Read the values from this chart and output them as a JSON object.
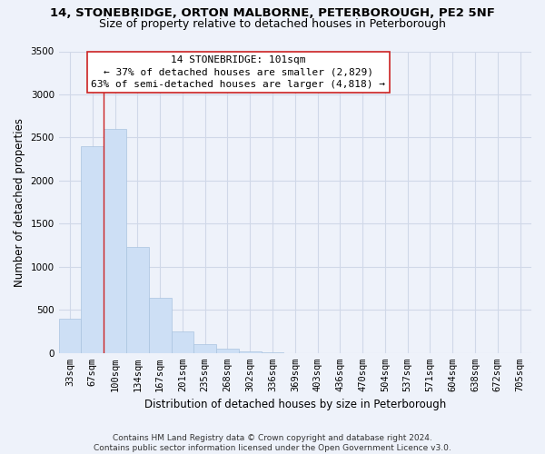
{
  "title": "14, STONEBRIDGE, ORTON MALBORNE, PETERBOROUGH, PE2 5NF",
  "subtitle": "Size of property relative to detached houses in Peterborough",
  "xlabel": "Distribution of detached houses by size in Peterborough",
  "ylabel": "Number of detached properties",
  "bar_color": "#cddff5",
  "bar_edge_color": "#aac4e0",
  "annotation_line_color": "#cc2222",
  "categories": [
    "33sqm",
    "67sqm",
    "100sqm",
    "134sqm",
    "167sqm",
    "201sqm",
    "235sqm",
    "268sqm",
    "302sqm",
    "336sqm",
    "369sqm",
    "403sqm",
    "436sqm",
    "470sqm",
    "504sqm",
    "537sqm",
    "571sqm",
    "604sqm",
    "638sqm",
    "672sqm",
    "705sqm"
  ],
  "values": [
    400,
    2400,
    2600,
    1230,
    640,
    255,
    105,
    55,
    18,
    5,
    2,
    0,
    0,
    0,
    0,
    0,
    0,
    0,
    0,
    0,
    0
  ],
  "annotation_bar_index": 2,
  "annotation_text_line1": "14 STONEBRIDGE: 101sqm",
  "annotation_text_line2": "← 37% of detached houses are smaller (2,829)",
  "annotation_text_line3": "63% of semi-detached houses are larger (4,818) →",
  "ylim": [
    0,
    3500
  ],
  "yticks": [
    0,
    500,
    1000,
    1500,
    2000,
    2500,
    3000,
    3500
  ],
  "footer_line1": "Contains HM Land Registry data © Crown copyright and database right 2024.",
  "footer_line2": "Contains public sector information licensed under the Open Government Licence v3.0.",
  "bg_color": "#eef2fa",
  "plot_bg_color": "#eef2fa",
  "grid_color": "#d0d8e8",
  "title_fontsize": 9.5,
  "subtitle_fontsize": 9,
  "axis_label_fontsize": 8.5,
  "tick_fontsize": 7.5,
  "annotation_fontsize": 8,
  "footer_fontsize": 6.5
}
